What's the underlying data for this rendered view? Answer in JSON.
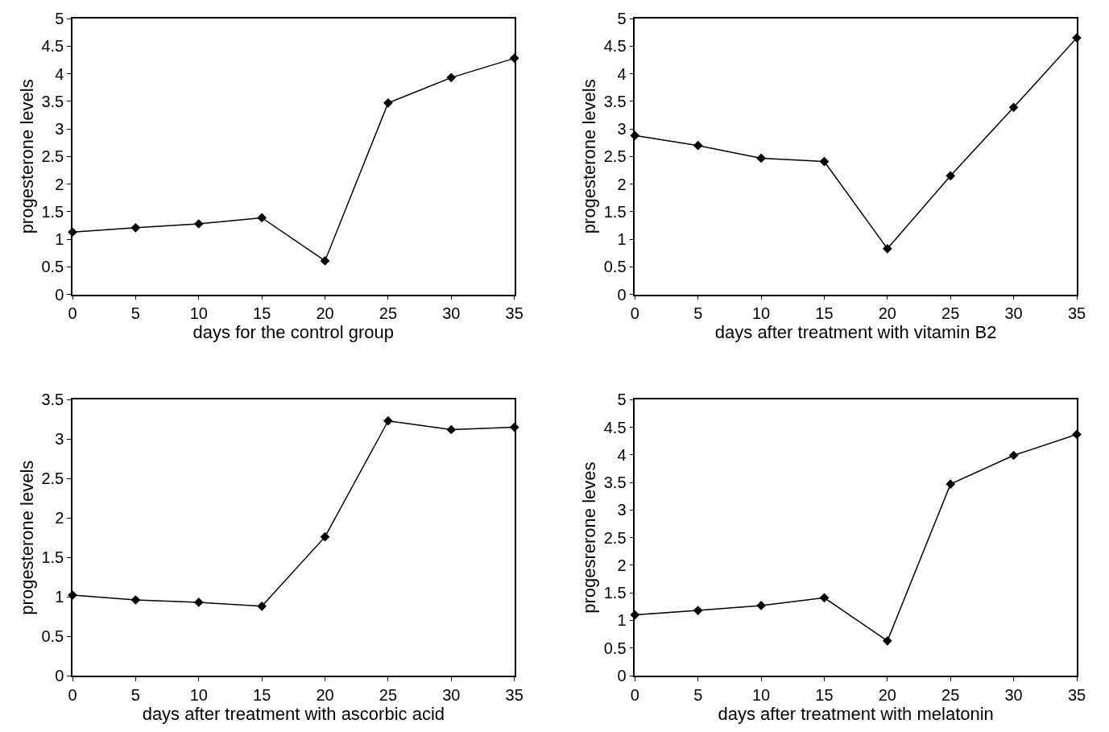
{
  "chart_data": [
    {
      "type": "line",
      "xlabel": "days for the control group",
      "ylabel": "progesterone levels",
      "x": [
        0,
        5,
        10,
        15,
        20,
        25,
        30,
        35
      ],
      "series": [
        {
          "color": "#000000",
          "values": [
            1.13,
            1.21,
            1.28,
            1.39,
            0.61,
            3.47,
            3.93,
            4.28
          ]
        }
      ],
      "xlim": [
        0,
        35
      ],
      "xticks": [
        0,
        5,
        10,
        15,
        20,
        25,
        30,
        35
      ],
      "ylim": [
        0,
        5
      ],
      "yticks": [
        0,
        0.5,
        1,
        1.5,
        2,
        2.5,
        3,
        3.5,
        4,
        4.5,
        5
      ],
      "marker": "diamond",
      "line_style": "solid"
    },
    {
      "type": "line",
      "xlabel": "days after treatment with vitamin B2",
      "ylabel": "progesterone levels",
      "x": [
        0,
        5,
        10,
        15,
        20,
        25,
        30,
        35
      ],
      "series": [
        {
          "color": "#000000",
          "values": [
            2.88,
            2.7,
            2.47,
            2.41,
            0.83,
            2.15,
            3.39,
            4.65
          ]
        }
      ],
      "xlim": [
        0,
        35
      ],
      "xticks": [
        0,
        5,
        10,
        15,
        20,
        25,
        30,
        35
      ],
      "ylim": [
        0,
        5
      ],
      "yticks": [
        0,
        0.5,
        1,
        1.5,
        2,
        2.5,
        3,
        3.5,
        4,
        4.5,
        5
      ],
      "marker": "diamond",
      "line_style": "solid"
    },
    {
      "type": "line",
      "xlabel": "days after treatment with ascorbic acid",
      "ylabel": "progesterone levels",
      "x": [
        0,
        5,
        10,
        15,
        20,
        25,
        30,
        35
      ],
      "series": [
        {
          "color": "#000000",
          "values": [
            1.02,
            0.96,
            0.93,
            0.88,
            1.76,
            3.23,
            3.12,
            3.15
          ]
        }
      ],
      "xlim": [
        0,
        35
      ],
      "xticks": [
        0,
        5,
        10,
        15,
        20,
        25,
        30,
        35
      ],
      "ylim": [
        0,
        3.5
      ],
      "yticks": [
        0,
        0.5,
        1,
        1.5,
        2,
        2.5,
        3,
        3.5
      ],
      "marker": "diamond",
      "line_style": "solid"
    },
    {
      "type": "line",
      "xlabel": "days after treatment with melatonin",
      "ylabel": "progesrerone leves",
      "x": [
        0,
        5,
        10,
        15,
        20,
        25,
        30,
        35
      ],
      "series": [
        {
          "color": "#000000",
          "values": [
            1.1,
            1.18,
            1.27,
            1.41,
            0.63,
            3.47,
            3.99,
            4.37
          ]
        }
      ],
      "xlim": [
        0,
        35
      ],
      "xticks": [
        0,
        5,
        10,
        15,
        20,
        25,
        30,
        35
      ],
      "ylim": [
        0,
        5
      ],
      "yticks": [
        0,
        0.5,
        1,
        1.5,
        2,
        2.5,
        3,
        3.5,
        4,
        4.5,
        5
      ],
      "marker": "diamond",
      "line_style": "solid"
    }
  ]
}
